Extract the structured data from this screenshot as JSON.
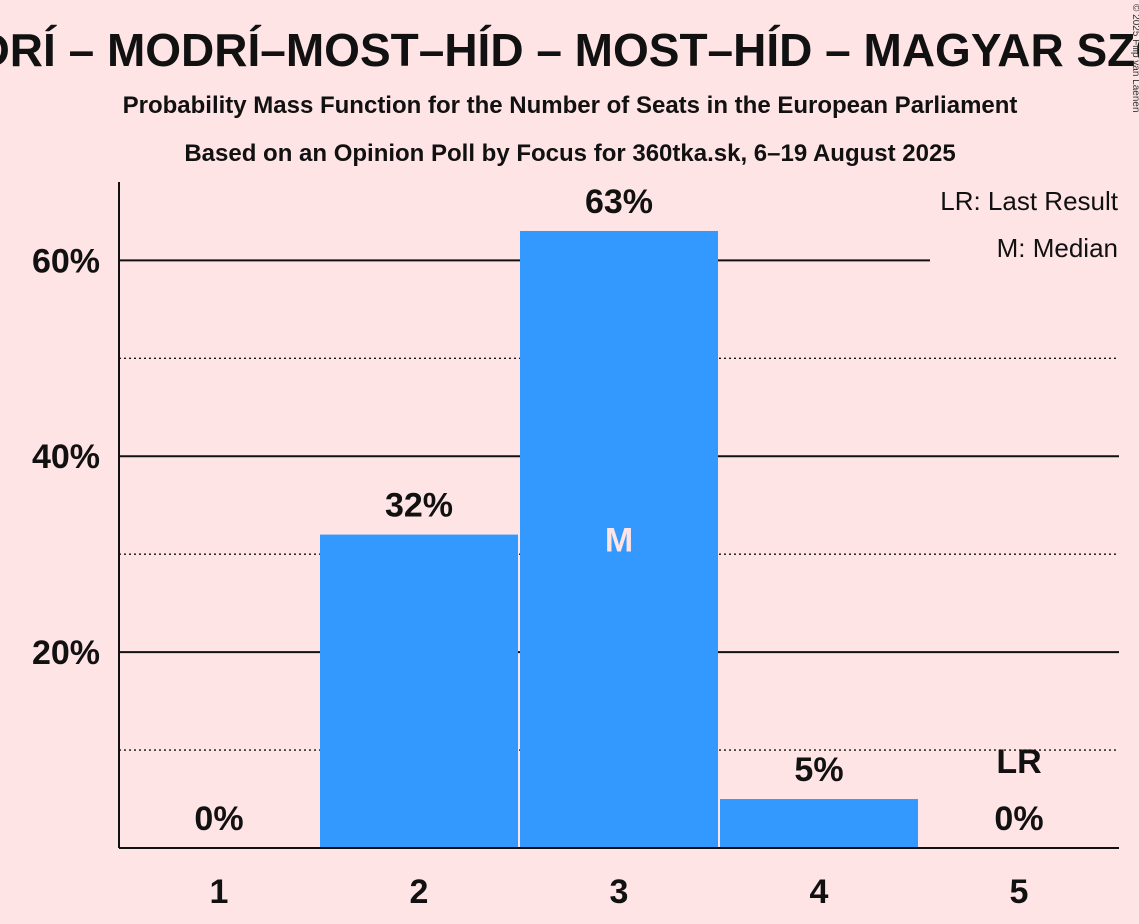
{
  "chart_data": {
    "type": "bar",
    "title": "MS – MODRÍ – MODRÍ–MOST–HÍD – MOST–HÍD – MAGYAR SZÖVETSÉG",
    "subtitle_lines": [
      "Probability Mass Function for the Number of Seats in the European Parliament",
      "Based on an Opinion Poll by Focus for 360tka.sk, 6–19 August 2025"
    ],
    "categories": [
      "1",
      "2",
      "3",
      "4",
      "5"
    ],
    "values": [
      0,
      32,
      63,
      5,
      0
    ],
    "value_labels": [
      "0%",
      "32%",
      "63%",
      "5%",
      "0%"
    ],
    "ylim": [
      0,
      68
    ],
    "y_major_ticks": [
      20,
      40,
      60
    ],
    "y_major_tick_labels": [
      "20%",
      "40%",
      "60%"
    ],
    "y_minor_ticks": [
      10,
      30,
      50
    ],
    "median_category": "3",
    "median_marker": "M",
    "last_result_category": "5",
    "last_result_marker": "LR",
    "legend": [
      "LR: Last Result",
      "M: Median"
    ],
    "legend_position": "top-right",
    "copyright": "© 2025 Filip van Laenen",
    "colors": {
      "bar": "#3399FF",
      "background": "#FFE4E6",
      "text": "#111111",
      "median_text": "#FFE4E6"
    }
  }
}
